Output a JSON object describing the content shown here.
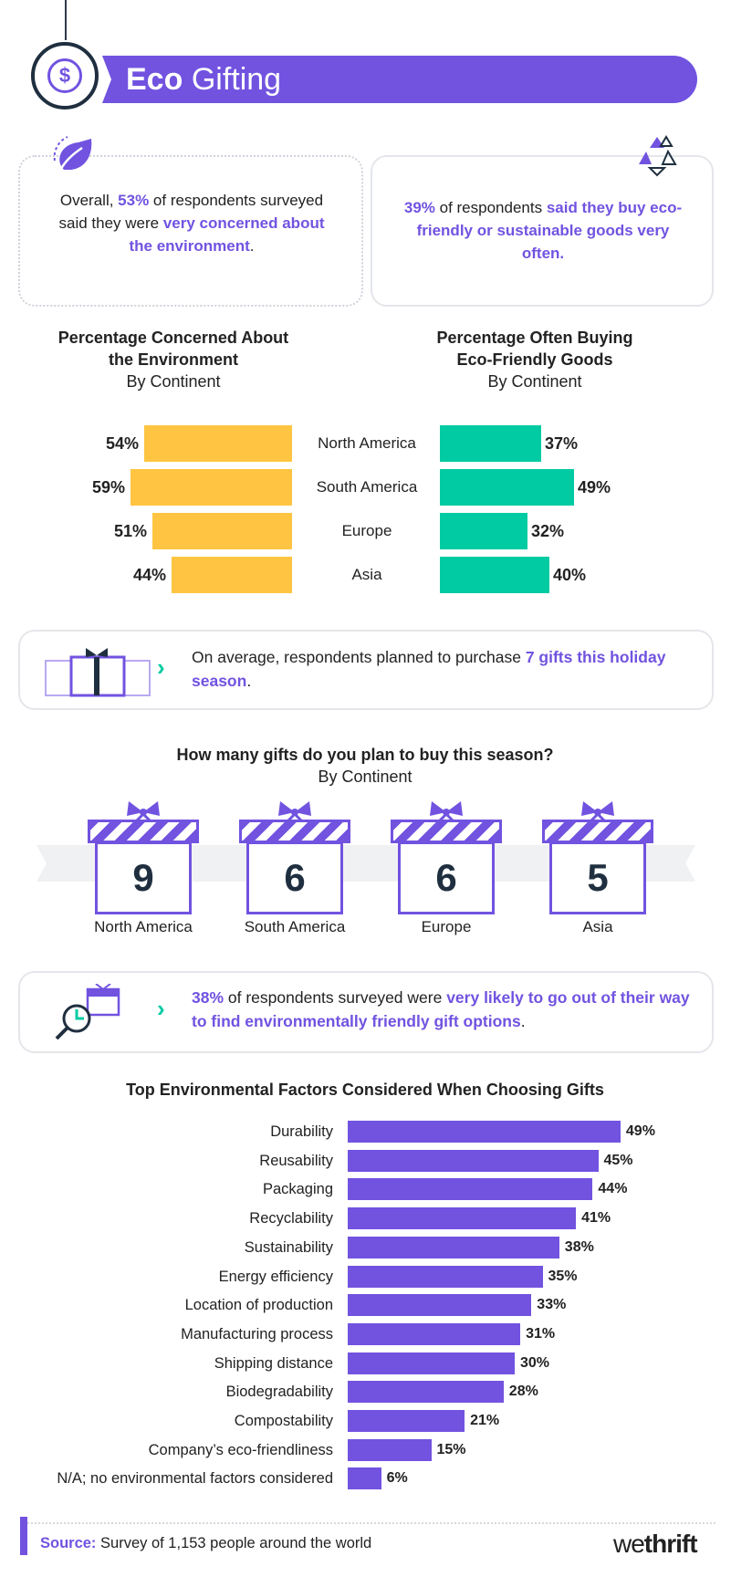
{
  "header": {
    "title_bold": "Eco",
    "title_light": "Gifting",
    "coin_symbol": "$"
  },
  "stats": {
    "left": {
      "pre": "Overall, ",
      "pct": "53%",
      "mid": " of respondents surveyed said they were ",
      "highlight": "very concerned about the environment",
      "post": "."
    },
    "right": {
      "pct": "39%",
      "mid": " of respondents ",
      "highlight": "said they buy eco-friendly or sustainable goods very often."
    }
  },
  "chart_data": [
    {
      "type": "bar",
      "title": "Percentage Concerned About the Environment",
      "subtitle": "By Continent",
      "categories": [
        "North America",
        "South America",
        "Europe",
        "Asia"
      ],
      "values": [
        54,
        59,
        51,
        44
      ],
      "value_labels": [
        "54%",
        "59%",
        "51%",
        "44%"
      ],
      "color": "#FFC542"
    },
    {
      "type": "bar",
      "title": "Percentage Often Buying Eco-Friendly Goods",
      "subtitle": "By Continent",
      "categories": [
        "North America",
        "South America",
        "Europe",
        "Asia"
      ],
      "values": [
        37,
        49,
        32,
        40
      ],
      "value_labels": [
        "37%",
        "49%",
        "32%",
        "40%"
      ],
      "color": "#00CBA2"
    },
    {
      "type": "bar",
      "title": "How many gifts do you plan to buy this season?",
      "subtitle": "By Continent",
      "categories": [
        "North America",
        "South America",
        "Europe",
        "Asia"
      ],
      "values": [
        9,
        6,
        6,
        5
      ]
    },
    {
      "type": "bar",
      "title": "Top Environmental Factors Considered When Choosing Gifts",
      "categories": [
        "Durability",
        "Reusability",
        "Packaging",
        "Recyclability",
        "Sustainability",
        "Energy efficiency",
        "Location of production",
        "Manufacturing process",
        "Shipping distance",
        "Biodegradability",
        "Compostability",
        "Company’s eco-friendliness",
        "N/A; no environmental factors considered"
      ],
      "values": [
        49,
        45,
        44,
        41,
        38,
        35,
        33,
        31,
        30,
        28,
        21,
        15,
        6
      ],
      "value_labels": [
        "49%",
        "45%",
        "44%",
        "41%",
        "38%",
        "35%",
        "33%",
        "31%",
        "30%",
        "28%",
        "21%",
        "15%",
        "6%"
      ],
      "color": "#7153E0"
    }
  ],
  "concern_title_1": "Percentage Concerned About",
  "concern_title_2": "the Environment",
  "buying_title_1": "Percentage Often Buying",
  "buying_title_2": "Eco-Friendly Goods",
  "by_continent": "By Continent",
  "gifts_title": "How many gifts do you plan to buy this season?",
  "info_gifts": {
    "pre": "On average, respondents planned to purchase ",
    "highlight": "7 gifts this holiday season",
    "post": "."
  },
  "info_likely": {
    "pct": "38%",
    "mid": " of respondents surveyed were ",
    "highlight": "very likely to go out of their way to find environmentally friendly gift options",
    "post": "."
  },
  "factors_title": "Top Environmental Factors Considered When Choosing Gifts",
  "footer": {
    "source_label": "Source:",
    "source_text": " Survey of 1,153 people around the world",
    "logo_light": "we",
    "logo_bold": "thrift"
  },
  "colors": {
    "purple": "#7153E0",
    "yellow": "#FFC542",
    "green": "#00CBA2",
    "navy": "#1f2f3f"
  }
}
